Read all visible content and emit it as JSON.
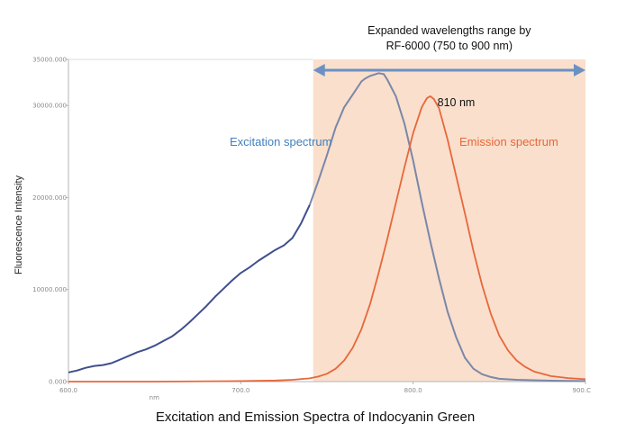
{
  "chart_data": {
    "type": "line",
    "title": "",
    "caption": "Excitation and Emission Spectra of Indocyanin Green",
    "xlabel": "nm",
    "ylabel": "Fluorescence Intensity",
    "xlim": [
      600,
      900
    ],
    "ylim": [
      0,
      35000
    ],
    "x_ticks": [
      600,
      700,
      800,
      900
    ],
    "x_tick_labels": [
      "600.0",
      "700.0",
      "800.0",
      "900.C"
    ],
    "y_ticks": [
      0,
      10000,
      20000,
      30000,
      35000
    ],
    "y_tick_labels": [
      "0.000",
      "10000.000",
      "20000.000",
      "30000.000",
      "35000.000"
    ],
    "grid": false,
    "highlight_band": {
      "range": [
        742,
        900
      ],
      "color": "#f9dfcc",
      "label_line1": "Expanded wavelengths range by",
      "label_line2": "RF-6000 (750 to 900 nm)",
      "arrow_color": "#6b91c4"
    },
    "annotations": [
      {
        "text": "810 nm",
        "x": 812,
        "y": 30300
      }
    ],
    "series": [
      {
        "name": "Excitation spectrum",
        "color": "#3f4f8c",
        "color_in_band": "#7b87a8",
        "label_color": "#3f7fbf",
        "x": [
          600,
          605,
          610,
          615,
          620,
          625,
          630,
          635,
          640,
          645,
          650,
          655,
          660,
          665,
          670,
          675,
          680,
          685,
          690,
          695,
          700,
          705,
          710,
          715,
          720,
          725,
          730,
          735,
          740,
          745,
          750,
          755,
          760,
          765,
          770,
          772,
          775,
          780,
          783,
          785,
          790,
          795,
          800,
          805,
          810,
          815,
          820,
          825,
          830,
          835,
          840,
          845,
          850,
          860,
          870,
          880,
          890,
          900
        ],
        "values": [
          1000,
          1200,
          1500,
          1700,
          1800,
          2000,
          2400,
          2800,
          3200,
          3500,
          3900,
          4400,
          4900,
          5600,
          6400,
          7300,
          8200,
          9200,
          10100,
          11000,
          11800,
          12400,
          13100,
          13700,
          14300,
          14800,
          15600,
          17200,
          19200,
          21800,
          24600,
          27600,
          29800,
          31200,
          32600,
          32900,
          33200,
          33500,
          33400,
          32800,
          31000,
          28000,
          24000,
          19500,
          15200,
          11200,
          7600,
          4800,
          2600,
          1400,
          800,
          500,
          300,
          200,
          150,
          100,
          80,
          60
        ]
      },
      {
        "name": "Emission spectrum",
        "color": "#e8673a",
        "label_color": "#e8673a",
        "x": [
          600,
          650,
          700,
          720,
          730,
          740,
          745,
          750,
          755,
          760,
          765,
          770,
          775,
          780,
          785,
          790,
          795,
          800,
          805,
          808,
          810,
          812,
          815,
          820,
          825,
          830,
          835,
          840,
          845,
          850,
          855,
          860,
          865,
          870,
          880,
          890,
          900
        ],
        "values": [
          0,
          0,
          60,
          120,
          200,
          350,
          550,
          850,
          1400,
          2300,
          3700,
          5700,
          8400,
          11800,
          15500,
          19400,
          23300,
          27000,
          29800,
          30800,
          31000,
          30700,
          29700,
          26300,
          22300,
          18300,
          14200,
          10500,
          7400,
          5000,
          3400,
          2300,
          1600,
          1100,
          600,
          380,
          250
        ]
      }
    ]
  }
}
